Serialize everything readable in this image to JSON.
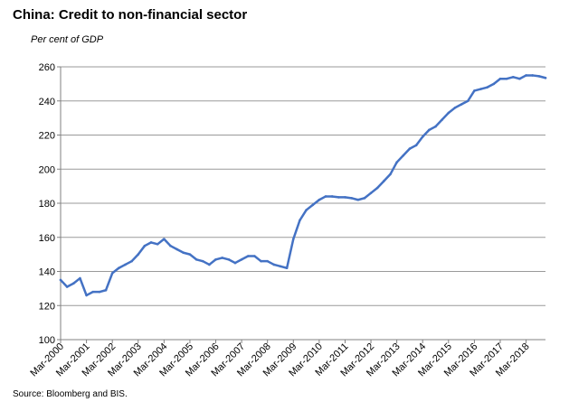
{
  "chart_data": {
    "type": "line",
    "title": "China: Credit to non-financial sector",
    "subtitle": "Per cent of GDP",
    "source": "Source: Bloomberg and BIS.",
    "xlabel": "",
    "ylabel": "",
    "ylim": [
      100,
      260
    ],
    "yticks": [
      100,
      120,
      140,
      160,
      180,
      200,
      220,
      240,
      260
    ],
    "grid": true,
    "legend": "none",
    "line_color": "#4472C4",
    "x_tick_labels": [
      "Mar-2000",
      "Mar-2001",
      "Mar-2002",
      "Mar-2003",
      "Mar-2004",
      "Mar-2005",
      "Mar-2006",
      "Mar-2007",
      "Mar-2008",
      "Mar-2009",
      "Mar-2010",
      "Mar-2011",
      "Mar-2012",
      "Mar-2013",
      "Mar-2014",
      "Mar-2015",
      "Mar-2016",
      "Mar-2017",
      "Mar-2018"
    ],
    "x": [
      "Mar-2000",
      "Jun-2000",
      "Sep-2000",
      "Dec-2000",
      "Mar-2001",
      "Jun-2001",
      "Sep-2001",
      "Dec-2001",
      "Mar-2002",
      "Jun-2002",
      "Sep-2002",
      "Dec-2002",
      "Mar-2003",
      "Jun-2003",
      "Sep-2003",
      "Dec-2003",
      "Mar-2004",
      "Jun-2004",
      "Sep-2004",
      "Dec-2004",
      "Mar-2005",
      "Jun-2005",
      "Sep-2005",
      "Dec-2005",
      "Mar-2006",
      "Jun-2006",
      "Sep-2006",
      "Dec-2006",
      "Mar-2007",
      "Jun-2007",
      "Sep-2007",
      "Dec-2007",
      "Mar-2008",
      "Jun-2008",
      "Sep-2008",
      "Dec-2008",
      "Mar-2009",
      "Jun-2009",
      "Sep-2009",
      "Dec-2009",
      "Mar-2010",
      "Jun-2010",
      "Sep-2010",
      "Dec-2010",
      "Mar-2011",
      "Jun-2011",
      "Sep-2011",
      "Dec-2011",
      "Mar-2012",
      "Jun-2012",
      "Sep-2012",
      "Dec-2012",
      "Mar-2013",
      "Jun-2013",
      "Sep-2013",
      "Dec-2013",
      "Mar-2014",
      "Jun-2014",
      "Sep-2014",
      "Dec-2014",
      "Mar-2015",
      "Jun-2015",
      "Sep-2015",
      "Dec-2015",
      "Mar-2016",
      "Jun-2016",
      "Sep-2016",
      "Dec-2016",
      "Mar-2017",
      "Jun-2017",
      "Sep-2017",
      "Dec-2017",
      "Mar-2018",
      "Jun-2018",
      "Sep-2018",
      "Dec-2018"
    ],
    "series": [
      {
        "values": [
          135,
          131,
          133,
          136,
          126,
          128,
          128,
          129,
          139,
          142,
          144,
          146,
          150,
          155,
          157,
          156,
          159,
          155,
          153,
          151,
          150,
          147,
          146,
          144,
          147,
          148,
          147,
          145,
          147,
          149,
          149,
          146,
          146,
          144,
          143,
          142,
          159,
          170,
          176,
          179,
          182,
          184,
          184,
          183.5,
          183.5,
          183,
          182,
          183,
          186,
          189,
          193,
          197,
          204,
          208,
          212,
          214,
          219,
          223,
          225,
          229,
          233,
          236,
          238,
          240,
          246,
          247,
          248,
          250,
          253,
          253,
          254,
          253,
          255,
          255,
          254.5,
          253.5
        ]
      }
    ]
  }
}
